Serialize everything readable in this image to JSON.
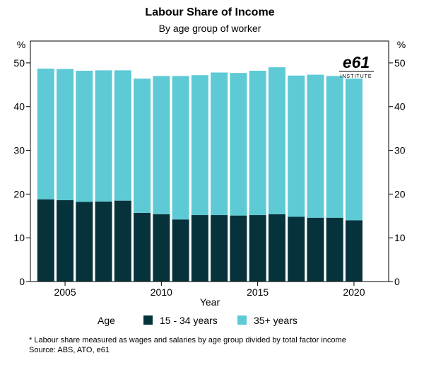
{
  "chart_data": {
    "type": "bar",
    "stacked": true,
    "title": "Labour Share of Income",
    "subtitle": "By age group of worker",
    "xlabel": "Year",
    "ylabel_left": "%",
    "ylabel_right": "%",
    "ylim": [
      0,
      55
    ],
    "yticks": [
      0,
      10,
      20,
      30,
      40,
      50
    ],
    "xlim": [
      2003.2,
      2021.8
    ],
    "xticks": [
      2005,
      2010,
      2015,
      2020
    ],
    "grid": false,
    "legend_position": "bottom",
    "legend_title": "Age",
    "x": [
      2004,
      2005,
      2006,
      2007,
      2008,
      2009,
      2010,
      2011,
      2012,
      2013,
      2014,
      2015,
      2016,
      2017,
      2018,
      2019,
      2020
    ],
    "series": [
      {
        "name": "15 - 34 years",
        "color": "#06323c",
        "values": [
          18.8,
          18.6,
          18.2,
          18.3,
          18.5,
          15.7,
          15.4,
          14.2,
          15.2,
          15.2,
          15.1,
          15.2,
          15.4,
          14.8,
          14.6,
          14.6,
          14.0
        ]
      },
      {
        "name": "35+ years",
        "color": "#5dcad5",
        "values": [
          29.9,
          30.0,
          30.0,
          30.0,
          29.8,
          30.7,
          31.6,
          32.8,
          32.0,
          32.6,
          32.6,
          33.0,
          33.6,
          32.3,
          32.7,
          32.4,
          32.4
        ]
      }
    ],
    "footnote": "* Labour share measured as wages and salaries by age group divided by total factor income",
    "source": "Source: ABS, ATO, e61",
    "logo": {
      "main": "e61",
      "sub": "INSTITUTE"
    }
  }
}
